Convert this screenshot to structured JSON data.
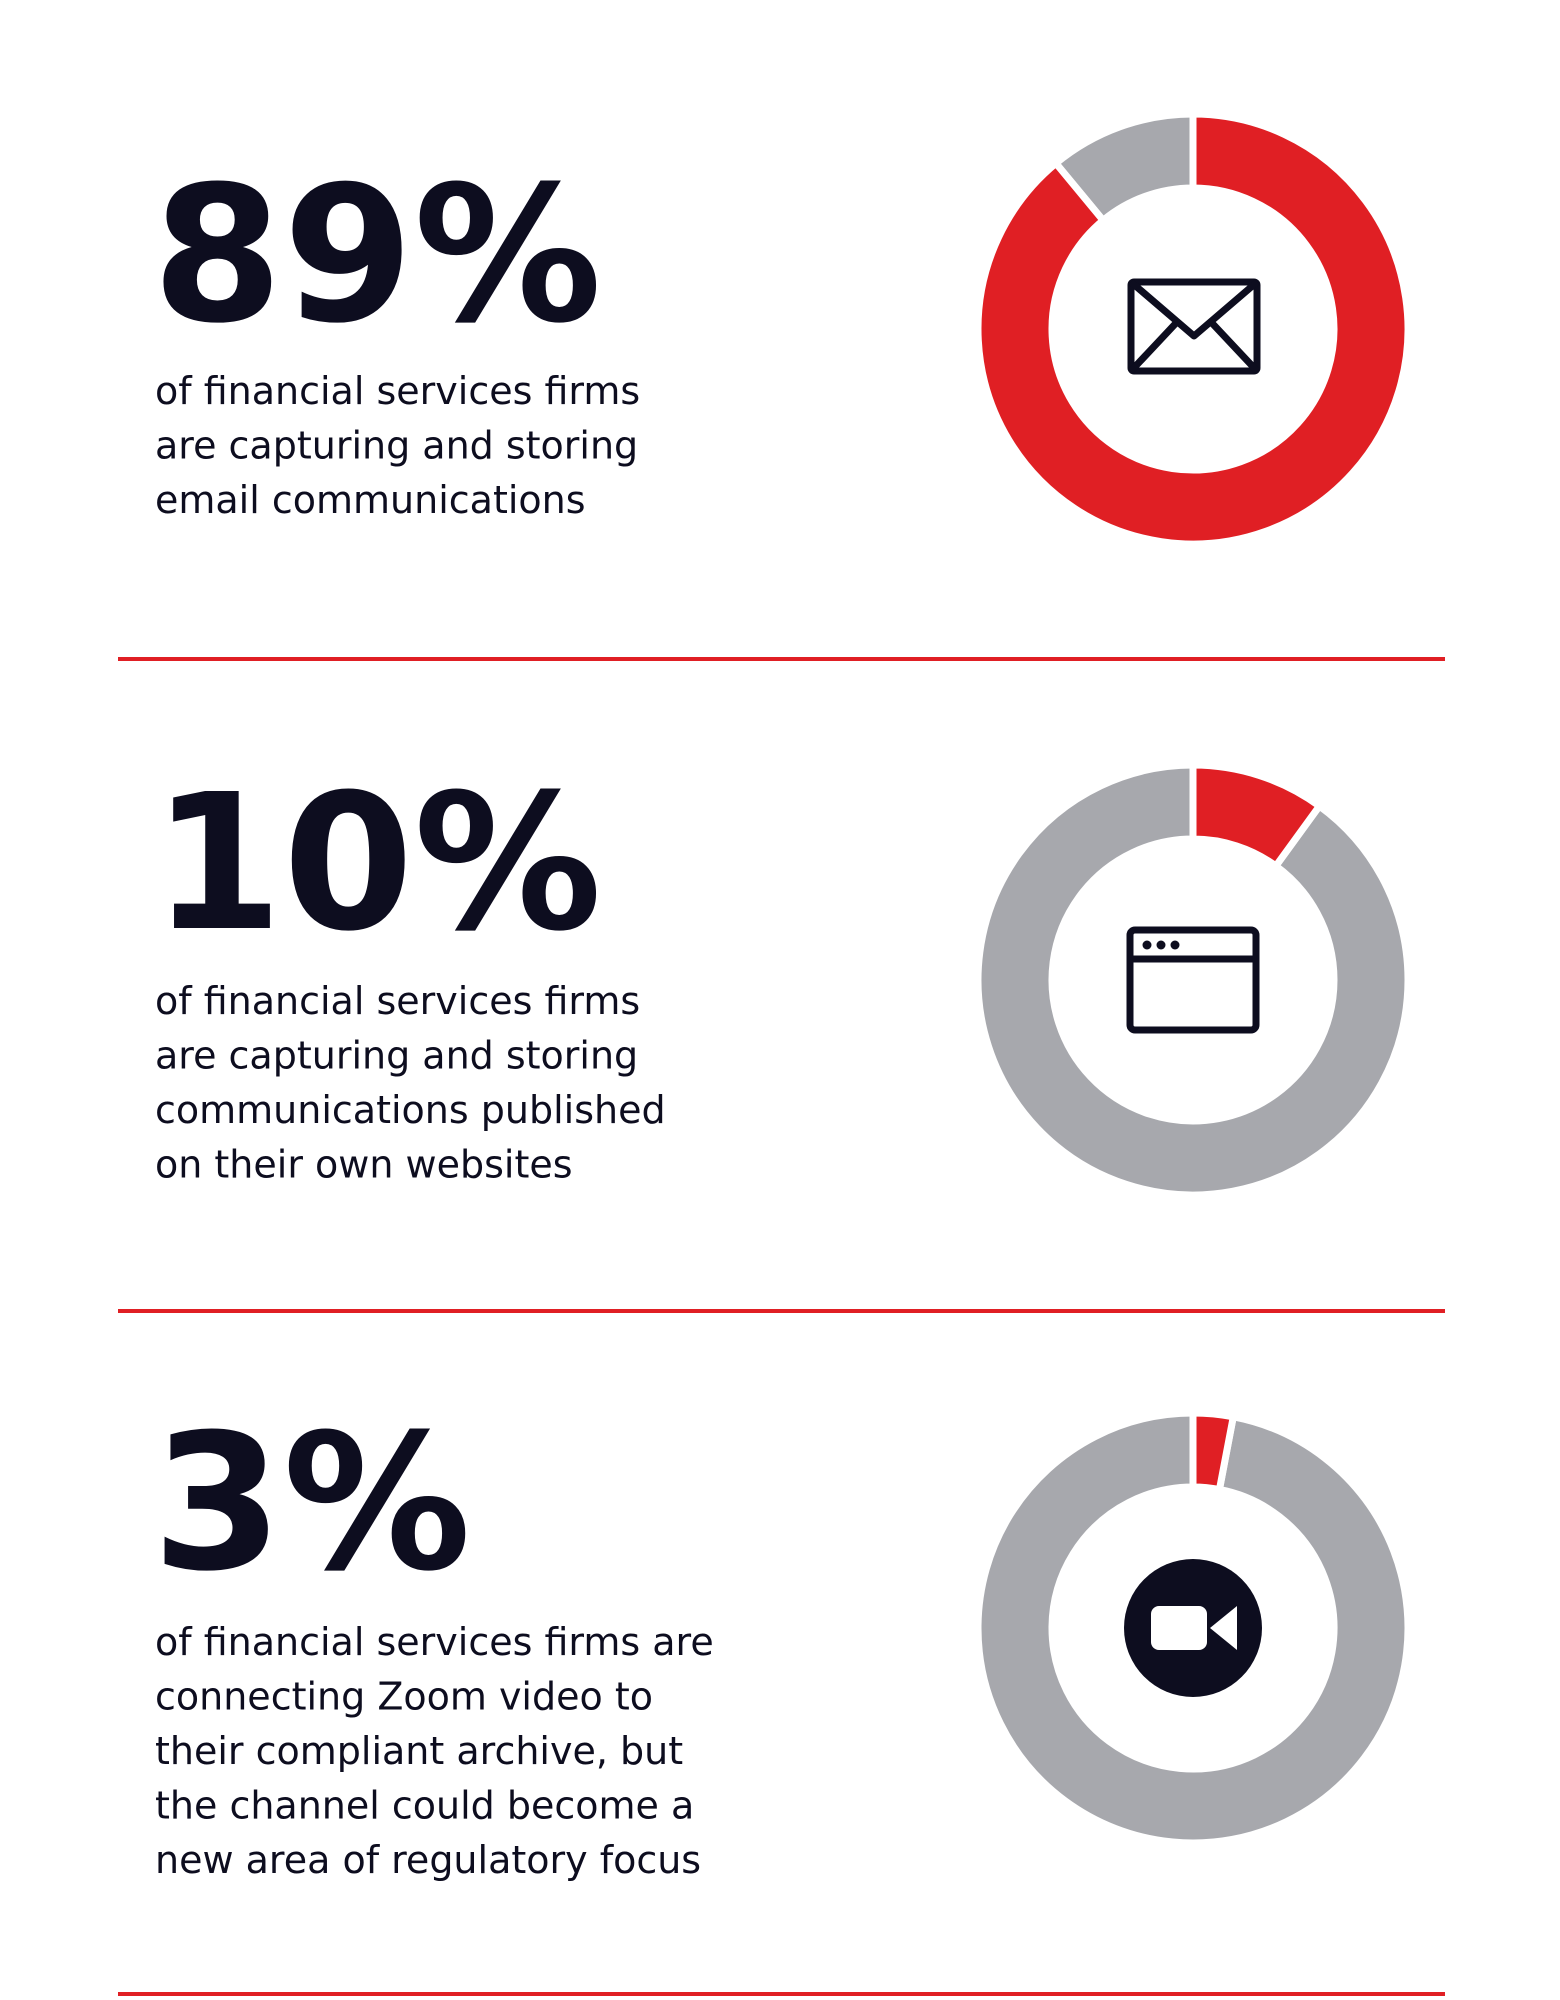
{
  "chart_data": [
    {
      "type": "donut",
      "values": [
        89,
        11
      ],
      "value_labels": [
        "89%",
        null
      ],
      "colors": [
        "#e01f24",
        "#a7a8ad"
      ],
      "description": [
        "of financial services firms",
        "are capturing and storing",
        "email communications"
      ]
    },
    {
      "type": "donut",
      "values": [
        10,
        90
      ],
      "value_labels": [
        "10%",
        null
      ],
      "colors": [
        "#e01f24",
        "#a7a8ad"
      ],
      "description": [
        "of financial services firms",
        "are capturing and storing",
        "communications published",
        "on their own websites"
      ]
    },
    {
      "type": "donut",
      "values": [
        3,
        97
      ],
      "value_labels": [
        "3%",
        null
      ],
      "colors": [
        "#e01f24",
        "#a7a8ad"
      ],
      "description": [
        "of financial services firms are",
        "connecting Zoom video to",
        "their compliant archive, but",
        "the channel could become a",
        "new area of regulatory focus"
      ]
    }
  ]
}
